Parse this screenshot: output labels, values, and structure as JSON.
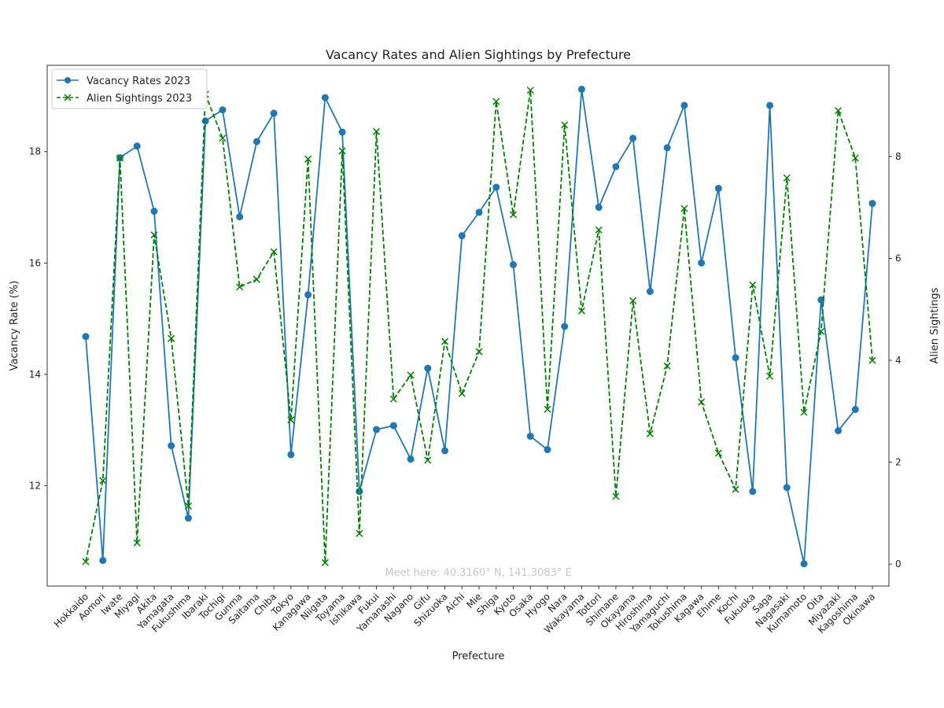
{
  "chart_data": {
    "type": "line",
    "title": "Vacancy Rates and Alien Sightings by Prefecture",
    "xlabel": "Prefecture",
    "ylabel": "Vacancy Rate (%)",
    "ylabel_right": "Alien Sightings",
    "ylim": [
      10.2,
      19.55
    ],
    "ylim_right": [
      -0.43,
      9.79
    ],
    "yticks": [
      12,
      14,
      16,
      18
    ],
    "yticks_right": [
      0,
      2,
      4,
      6,
      8
    ],
    "grid": false,
    "legend_position": "top-left",
    "annotation": "Meet here: 40.3160° N, 141.3083° E",
    "categories": [
      "Hokkaido",
      "Aomori",
      "Iwate",
      "Miyagi",
      "Akita",
      "Yamagata",
      "Fukushima",
      "Ibaraki",
      "Tochigi",
      "Gunma",
      "Saitama",
      "Chiba",
      "Tokyo",
      "Kanagawa",
      "Niigata",
      "Toyama",
      "Ishikawa",
      "Fukui",
      "Yamanashi",
      "Nagano",
      "Gifu",
      "Shizuoka",
      "Aichi",
      "Mie",
      "Shiga",
      "Kyoto",
      "Osaka",
      "Hyogo",
      "Nara",
      "Wakayama",
      "Tottori",
      "Shimane",
      "Okayama",
      "Hiroshima",
      "Yamaguchi",
      "Tokushima",
      "Kagawa",
      "Ehime",
      "Kochi",
      "Fukuoka",
      "Saga",
      "Nagasaki",
      "Kumamoto",
      "Oita",
      "Miyazaki",
      "Kagoshima",
      "Okinawa"
    ],
    "series": [
      {
        "name": "Vacancy Rates 2023",
        "axis": "left",
        "color": "#1f77b4",
        "marker": "circle",
        "linestyle": "solid",
        "values": [
          14.68,
          10.66,
          17.89,
          18.1,
          16.93,
          12.72,
          11.42,
          18.55,
          18.75,
          16.83,
          18.18,
          18.69,
          12.56,
          15.43,
          18.97,
          18.35,
          11.9,
          13.01,
          13.08,
          12.48,
          14.11,
          12.63,
          16.49,
          16.91,
          17.36,
          15.97,
          12.89,
          12.65,
          14.86,
          19.12,
          17.0,
          17.73,
          18.24,
          15.49,
          18.07,
          18.83,
          16.0,
          17.34,
          14.3,
          11.9,
          18.83,
          11.97,
          10.6,
          15.34,
          12.99,
          13.37,
          17.07
        ]
      },
      {
        "name": "Alien Sightings 2023",
        "axis": "right",
        "color": "#008000",
        "marker": "x",
        "linestyle": "dashed",
        "values": [
          0.05,
          1.64,
          7.97,
          0.42,
          6.46,
          4.43,
          1.14,
          9.22,
          8.36,
          5.44,
          5.59,
          6.13,
          2.83,
          7.95,
          0.03,
          8.11,
          0.6,
          8.49,
          3.24,
          3.71,
          2.04,
          4.37,
          3.35,
          4.17,
          9.08,
          6.86,
          9.3,
          3.04,
          8.62,
          4.97,
          6.56,
          1.33,
          5.17,
          2.56,
          3.89,
          6.98,
          3.18,
          2.18,
          1.47,
          5.48,
          3.69,
          7.58,
          2.98,
          4.57,
          8.9,
          7.97,
          4.0
        ]
      }
    ]
  }
}
